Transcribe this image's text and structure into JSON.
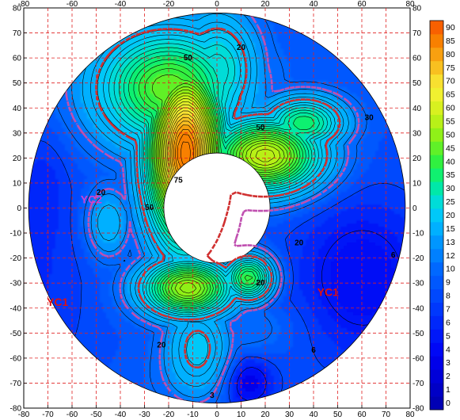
{
  "chart_data": {
    "type": "heatmap",
    "title": "",
    "xlabel": "",
    "ylabel": "",
    "xlim": [
      -80,
      80
    ],
    "ylim": [
      -80,
      80
    ],
    "x_ticks": [
      -80,
      -70,
      -60,
      -50,
      -40,
      -30,
      -20,
      -10,
      0,
      10,
      20,
      30,
      40,
      50,
      60,
      70,
      80
    ],
    "x_ticks_top": [
      -80,
      -60,
      -40,
      -20,
      0,
      20,
      40,
      60,
      80
    ],
    "y_ticks": [
      80,
      70,
      60,
      50,
      40,
      30,
      20,
      10,
      0,
      -10,
      -20,
      -30,
      -40,
      -50,
      -60,
      -70,
      -80
    ],
    "grid": true,
    "domain": {
      "outer_radius": 78,
      "inner_radius": 22,
      "center": [
        0,
        0
      ]
    },
    "colorbar": {
      "levels": [
        "0",
        "1",
        "2",
        "3",
        "4",
        "5",
        "6",
        "7",
        "8",
        "9",
        "10",
        "12",
        "13",
        "15",
        "20",
        "25",
        "30",
        "35",
        "40",
        "45",
        "50",
        "55",
        "60",
        "65",
        "70",
        "75",
        "80",
        "85",
        "90"
      ],
      "colors": [
        "#0000b4",
        "#0000c6",
        "#0000d8",
        "#0000ea",
        "#0008f6",
        "#0018f8",
        "#0028fa",
        "#0038fc",
        "#0048fd",
        "#0058fe",
        "#0068ff",
        "#0080ff",
        "#0096ff",
        "#00b0ff",
        "#00c8f8",
        "#00dcd8",
        "#00e8a8",
        "#10f070",
        "#30f040",
        "#60f028",
        "#90f018",
        "#b8f018",
        "#d8f020",
        "#f0f030",
        "#f8e030",
        "#f8c020",
        "#f8a010",
        "#f88000",
        "#f86000"
      ]
    },
    "contour_labels": [
      {
        "text": "50",
        "x": -12,
        "y": 60
      },
      {
        "text": "20",
        "x": 10,
        "y": 64
      },
      {
        "text": "30",
        "x": 63,
        "y": 36
      },
      {
        "text": "50",
        "x": 18,
        "y": 32
      },
      {
        "text": "75",
        "x": -16,
        "y": 11
      },
      {
        "text": "50",
        "x": -28,
        "y": 0
      },
      {
        "text": "20",
        "x": -48,
        "y": 6
      },
      {
        "text": "20",
        "x": 34,
        "y": -14
      },
      {
        "text": "20",
        "x": 18,
        "y": -30
      },
      {
        "text": "6",
        "x": 73,
        "y": -19
      },
      {
        "text": "6",
        "x": 40,
        "y": -57
      },
      {
        "text": "20",
        "x": -23,
        "y": -55
      },
      {
        "text": "3",
        "x": -2,
        "y": -75
      }
    ],
    "zone_labels": [
      {
        "text": "YC2",
        "x": -52,
        "y": 3,
        "color": "#d040d0"
      },
      {
        "text": "YC1",
        "x": -66,
        "y": -38,
        "color": "#e01010"
      },
      {
        "text": "YC1",
        "x": 46,
        "y": -34,
        "color": "#e01010"
      }
    ],
    "hotspots": [
      {
        "x": -13,
        "y": 22,
        "value": 90,
        "rx": 15,
        "ry": 34
      },
      {
        "x": 20,
        "y": 21,
        "value": 60,
        "rx": 22,
        "ry": 14
      },
      {
        "x": -12,
        "y": -32,
        "value": 55,
        "rx": 18,
        "ry": 11
      },
      {
        "x": 13,
        "y": -28,
        "value": 42,
        "rx": 10,
        "ry": 9
      },
      {
        "x": -20,
        "y": 48,
        "value": 48,
        "rx": 28,
        "ry": 22
      },
      {
        "x": 0,
        "y": 55,
        "value": 30,
        "rx": 16,
        "ry": 22
      },
      {
        "x": 36,
        "y": 34,
        "value": 38,
        "rx": 16,
        "ry": 10
      },
      {
        "x": -45,
        "y": -6,
        "value": 18,
        "rx": 9,
        "ry": 14
      },
      {
        "x": -8,
        "y": -56,
        "value": 22,
        "rx": 13,
        "ry": 18
      },
      {
        "x": 8,
        "y": -48,
        "value": 12,
        "rx": 26,
        "ry": 12
      }
    ],
    "lows": [
      {
        "x": 60,
        "y": -28,
        "value": 4,
        "rx": 28,
        "ry": 32
      },
      {
        "x": -72,
        "y": -30,
        "value": 7,
        "rx": 20,
        "ry": 42
      },
      {
        "x": -72,
        "y": 10,
        "value": 7,
        "rx": 10,
        "ry": 20
      },
      {
        "x": 13,
        "y": -70,
        "value": 3,
        "rx": 10,
        "ry": 10
      },
      {
        "x": -20,
        "y": -70,
        "value": 10,
        "rx": 20,
        "ry": 12
      }
    ],
    "background_value": 9
  }
}
